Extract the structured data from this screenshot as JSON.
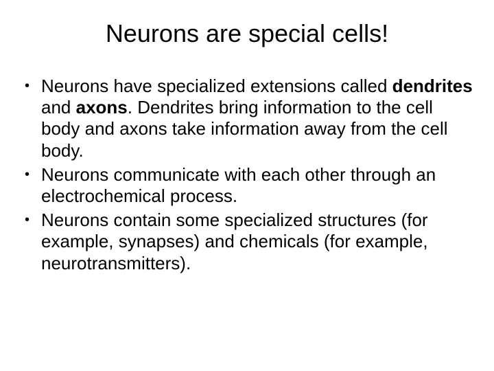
{
  "slide": {
    "title": "Neurons are special cells!",
    "title_fontsize": 36,
    "body_fontsize": 26,
    "font_family": "Comic Sans MS",
    "background_color": "#ffffff",
    "text_color": "#000000",
    "bullets": [
      {
        "segments": [
          {
            "text": "Neurons have specialized extensions called ",
            "bold": false
          },
          {
            "text": "dendrites",
            "bold": true
          },
          {
            "text": " and ",
            "bold": false
          },
          {
            "text": "axons",
            "bold": true
          },
          {
            "text": ". Dendrites bring information to the cell body and axons take information away from the cell body.",
            "bold": false
          }
        ]
      },
      {
        "segments": [
          {
            "text": "Neurons communicate with each other through an electrochemical process.",
            "bold": false
          }
        ]
      },
      {
        "segments": [
          {
            "text": "Neurons contain some specialized structures (for example, synapses) and chemicals (for example, neurotransmitters).",
            "bold": false
          }
        ]
      }
    ]
  }
}
